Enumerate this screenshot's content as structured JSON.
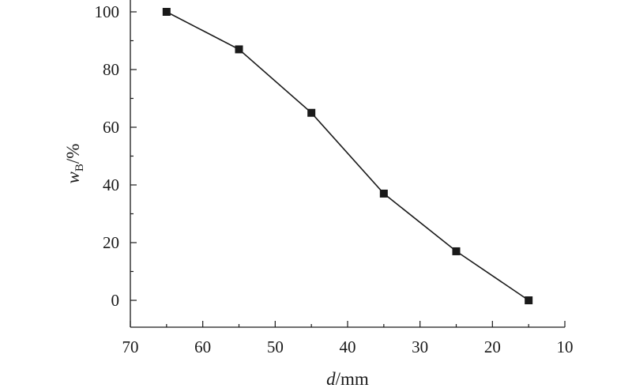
{
  "chart_data": {
    "type": "line",
    "xlabel": {
      "var": "d",
      "unit": "/mm"
    },
    "ylabel": {
      "var": "w",
      "sub": "B",
      "unit": "/%"
    },
    "xlim": [
      70,
      10
    ],
    "ylim": [
      0,
      100
    ],
    "x_ticks": [
      "70",
      "60",
      "50",
      "40",
      "30",
      "20",
      "10"
    ],
    "y_ticks": [
      "0",
      "20",
      "40",
      "60",
      "80",
      "100"
    ],
    "x_reversed": true,
    "grid": false,
    "series": [
      {
        "marker": "square",
        "color": "#1a1a1a",
        "x": [
          65,
          55,
          45,
          35,
          25,
          15
        ],
        "y": [
          100,
          87,
          65,
          37,
          17,
          0
        ]
      }
    ]
  }
}
